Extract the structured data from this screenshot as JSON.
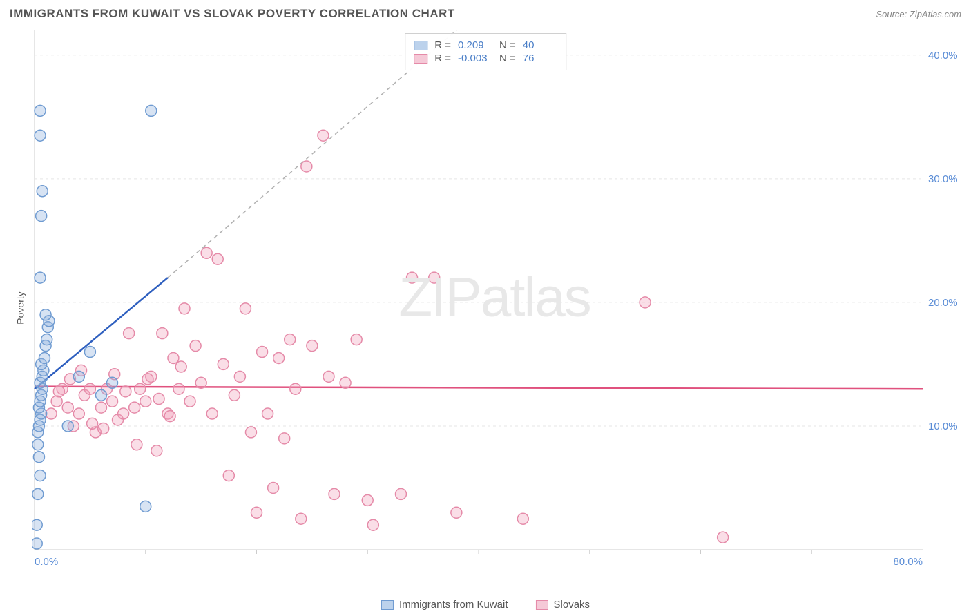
{
  "header": {
    "title": "IMMIGRANTS FROM KUWAIT VS SLOVAK POVERTY CORRELATION CHART",
    "source": "Source: ZipAtlas.com"
  },
  "watermark": {
    "zip": "ZIP",
    "atlas": "atlas"
  },
  "chart": {
    "type": "scatter",
    "y_axis_label": "Poverty",
    "xlim": [
      0,
      80
    ],
    "ylim": [
      0,
      42
    ],
    "x_ticks": [
      {
        "v": 0,
        "label": "0.0%"
      },
      {
        "v": 80,
        "label": "80.0%"
      }
    ],
    "x_minor_ticks": [
      10,
      20,
      30,
      40,
      50,
      60,
      70
    ],
    "y_ticks": [
      {
        "v": 10,
        "label": "10.0%"
      },
      {
        "v": 20,
        "label": "20.0%"
      },
      {
        "v": 30,
        "label": "30.0%"
      },
      {
        "v": 40,
        "label": "40.0%"
      }
    ],
    "grid_color": "#e5e5e5",
    "axis_color": "#cccccc",
    "background_color": "#ffffff",
    "tick_label_color": "#5b8dd6",
    "marker_radius": 8,
    "series": {
      "kuwait": {
        "label": "Immigrants from Kuwait",
        "fill": "rgba(140,175,220,0.35)",
        "stroke": "#6f9bd1",
        "swatch_fill": "#bcd2ec",
        "swatch_stroke": "#6f9bd1",
        "R": "0.209",
        "N": "40",
        "points": [
          [
            0.2,
            0.5
          ],
          [
            0.2,
            2.0
          ],
          [
            0.3,
            4.5
          ],
          [
            0.5,
            6.0
          ],
          [
            0.4,
            7.5
          ],
          [
            0.3,
            8.5
          ],
          [
            0.3,
            9.5
          ],
          [
            0.4,
            10.0
          ],
          [
            0.5,
            10.5
          ],
          [
            0.6,
            11.0
          ],
          [
            0.4,
            11.5
          ],
          [
            0.5,
            12.0
          ],
          [
            0.6,
            12.5
          ],
          [
            0.7,
            13.0
          ],
          [
            0.5,
            13.5
          ],
          [
            0.7,
            14.0
          ],
          [
            0.8,
            14.5
          ],
          [
            0.6,
            15.0
          ],
          [
            0.9,
            15.5
          ],
          [
            1.0,
            16.5
          ],
          [
            1.1,
            17.0
          ],
          [
            1.2,
            18.0
          ],
          [
            1.3,
            18.5
          ],
          [
            1.0,
            19.0
          ],
          [
            0.5,
            22.0
          ],
          [
            0.6,
            27.0
          ],
          [
            0.7,
            29.0
          ],
          [
            0.5,
            33.5
          ],
          [
            0.5,
            35.5
          ],
          [
            3.0,
            10.0
          ],
          [
            4.0,
            14.0
          ],
          [
            5.0,
            16.0
          ],
          [
            6.0,
            12.5
          ],
          [
            7.0,
            13.5
          ],
          [
            10.0,
            3.5
          ],
          [
            10.5,
            35.5
          ]
        ],
        "trendline": {
          "x1": 0,
          "y1": 13.0,
          "x2": 12,
          "y2": 22.0,
          "color": "#2e5fbf",
          "width": 2.5
        },
        "projection": {
          "x1": 12,
          "y1": 22.0,
          "x2": 38,
          "y2": 42.0,
          "color": "#b0b0b0",
          "dash": "6,5",
          "width": 1.5
        }
      },
      "slovaks": {
        "label": "Slovaks",
        "fill": "rgba(240,160,185,0.35)",
        "stroke": "#e58aa8",
        "swatch_fill": "#f5c9d7",
        "swatch_stroke": "#e58aa8",
        "R": "-0.003",
        "N": "76",
        "points": [
          [
            1.5,
            11.0
          ],
          [
            2.0,
            12.0
          ],
          [
            2.5,
            13.0
          ],
          [
            3.0,
            11.5
          ],
          [
            3.5,
            10.0
          ],
          [
            4.0,
            11.0
          ],
          [
            4.5,
            12.5
          ],
          [
            5.0,
            13.0
          ],
          [
            5.5,
            9.5
          ],
          [
            6.0,
            11.5
          ],
          [
            6.5,
            13.0
          ],
          [
            7.0,
            12.0
          ],
          [
            7.5,
            10.5
          ],
          [
            8.0,
            11.0
          ],
          [
            8.5,
            17.5
          ],
          [
            9.0,
            11.5
          ],
          [
            9.5,
            13.0
          ],
          [
            10.0,
            12.0
          ],
          [
            10.5,
            14.0
          ],
          [
            11.0,
            8.0
          ],
          [
            11.5,
            17.5
          ],
          [
            12.0,
            11.0
          ],
          [
            12.5,
            15.5
          ],
          [
            13.0,
            13.0
          ],
          [
            13.5,
            19.5
          ],
          [
            14.0,
            12.0
          ],
          [
            14.5,
            16.5
          ],
          [
            15.0,
            13.5
          ],
          [
            15.5,
            24.0
          ],
          [
            16.0,
            11.0
          ],
          [
            16.5,
            23.5
          ],
          [
            17.0,
            15.0
          ],
          [
            17.5,
            6.0
          ],
          [
            18.0,
            12.5
          ],
          [
            18.5,
            14.0
          ],
          [
            19.0,
            19.5
          ],
          [
            19.5,
            9.5
          ],
          [
            20.0,
            3.0
          ],
          [
            20.5,
            16.0
          ],
          [
            21.0,
            11.0
          ],
          [
            21.5,
            5.0
          ],
          [
            22.0,
            15.5
          ],
          [
            22.5,
            9.0
          ],
          [
            23.0,
            17.0
          ],
          [
            23.5,
            13.0
          ],
          [
            24.0,
            2.5
          ],
          [
            25.0,
            16.5
          ],
          [
            24.5,
            31.0
          ],
          [
            26.0,
            33.5
          ],
          [
            26.5,
            14.0
          ],
          [
            27.0,
            4.5
          ],
          [
            28.0,
            13.5
          ],
          [
            29.0,
            17.0
          ],
          [
            30.0,
            4.0
          ],
          [
            30.5,
            2.0
          ],
          [
            33.0,
            4.5
          ],
          [
            34.0,
            22.0
          ],
          [
            36.0,
            22.0
          ],
          [
            38.0,
            3.0
          ],
          [
            44.0,
            2.5
          ],
          [
            55.0,
            20.0
          ],
          [
            62.0,
            1.0
          ],
          [
            2.2,
            12.8
          ],
          [
            3.2,
            13.8
          ],
          [
            4.2,
            14.5
          ],
          [
            5.2,
            10.2
          ],
          [
            6.2,
            9.8
          ],
          [
            7.2,
            14.2
          ],
          [
            8.2,
            12.8
          ],
          [
            9.2,
            8.5
          ],
          [
            10.2,
            13.8
          ],
          [
            11.2,
            12.2
          ],
          [
            12.2,
            10.8
          ],
          [
            13.2,
            14.8
          ]
        ],
        "trendline": {
          "x1": 0,
          "y1": 13.2,
          "x2": 80,
          "y2": 13.0,
          "color": "#e0517e",
          "width": 2.5
        }
      }
    }
  },
  "legend": {
    "R_label": "R =",
    "N_label": "N ="
  }
}
